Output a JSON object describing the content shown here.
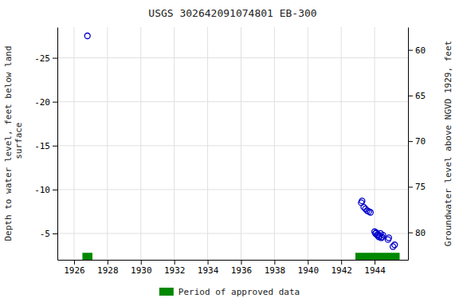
{
  "chart_data": {
    "type": "scatter",
    "title": "USGS 302642091074801 EB-300",
    "y_label": "Depth to water level, feet below land\n surface",
    "y2_label": "Groundwater level above NGVD 1929, feet",
    "xlim": [
      1925.0,
      1946.0
    ],
    "xticks": [
      1926,
      1928,
      1930,
      1932,
      1934,
      1936,
      1938,
      1940,
      1942,
      1944
    ],
    "ylim": [
      -2.0,
      -28.5
    ],
    "yticks": [
      -25,
      -20,
      -15,
      -10,
      -5
    ],
    "y2lim": [
      83.0,
      57.5
    ],
    "y2ticks": [
      60,
      65,
      70,
      75,
      80
    ],
    "grid": true,
    "legend": "bottom",
    "series": [
      {
        "type": "scatter",
        "marker": "open-circle",
        "color": "#0000cc",
        "x": [
          1926.8,
          1943.2,
          1943.25,
          1943.35,
          1943.45,
          1943.55,
          1943.65,
          1943.75,
          1944.0,
          1944.05,
          1944.1,
          1944.15,
          1944.2,
          1944.25,
          1944.3,
          1944.35,
          1944.4,
          1944.45,
          1944.5,
          1944.8,
          1944.85,
          1945.1,
          1945.2
        ],
        "values": [
          -27.5,
          -8.5,
          -8.7,
          -8.0,
          -7.8,
          -7.6,
          -7.5,
          -7.4,
          -5.2,
          -5.0,
          -5.1,
          -4.8,
          -4.9,
          -4.6,
          -4.7,
          -5.0,
          -4.5,
          -4.6,
          -4.8,
          -4.3,
          -4.5,
          -3.5,
          -3.7
        ]
      },
      {
        "type": "span",
        "name": "Period of approved data",
        "color": "#008800",
        "x_start": [
          1926.5,
          1942.85
        ],
        "x_end": [
          1927.1,
          1945.5
        ]
      }
    ]
  }
}
